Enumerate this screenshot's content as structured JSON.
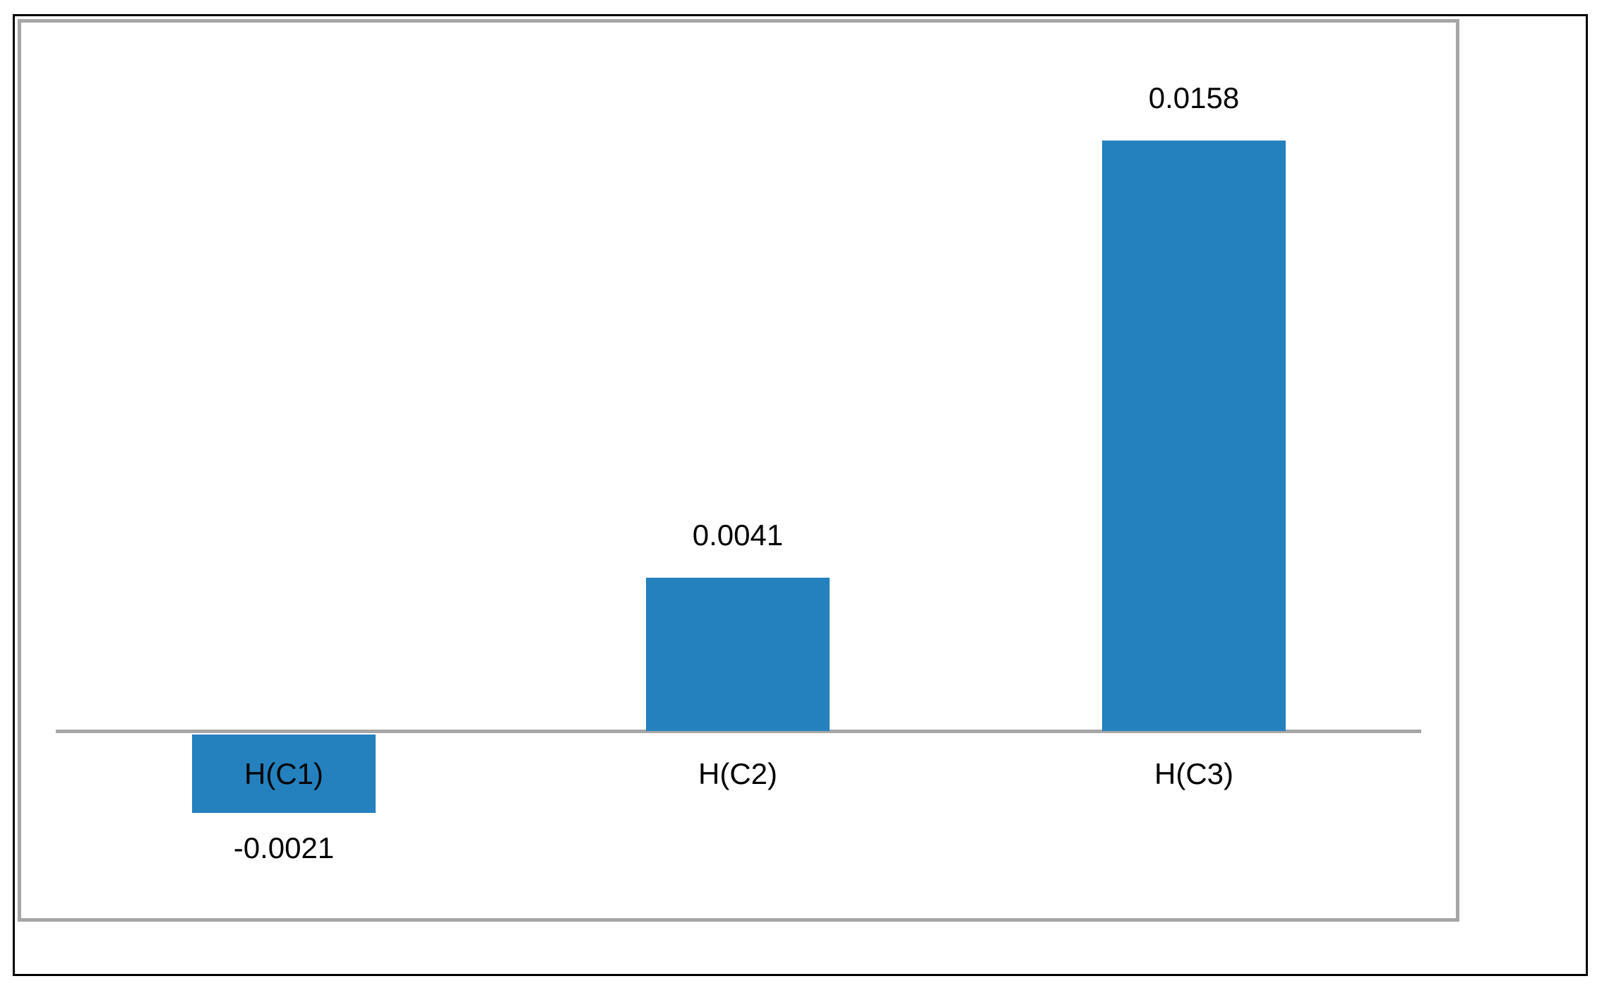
{
  "chart_data": {
    "type": "bar",
    "categories": [
      "H(C1)",
      "H(C2)",
      "H(C3)"
    ],
    "values": [
      -0.0021,
      0.0041,
      0.0158
    ],
    "data_labels": [
      "-0.0021",
      "0.0041",
      "0.0158"
    ],
    "title": "",
    "xlabel": "",
    "ylabel": "",
    "baseline": 0,
    "grid": "off",
    "legend": "none",
    "axis_ticks": "none",
    "bar_color": "#2581be",
    "axis_color": "#a6a6a6",
    "label_color": "#000000",
    "chart_frame_border_color": "#a6a6a6",
    "outer_border_color": "#000000",
    "background_color": "#ffffff"
  }
}
